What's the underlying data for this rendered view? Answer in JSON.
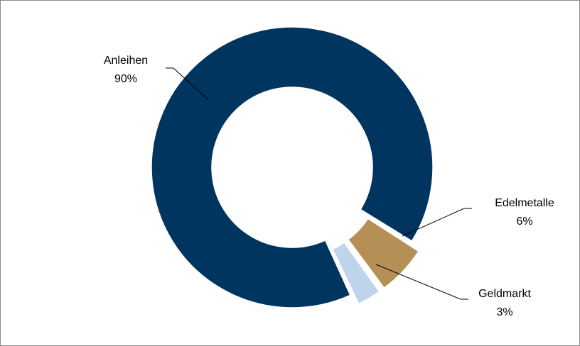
{
  "chart_data": {
    "type": "pie",
    "title": "",
    "slices": [
      {
        "label": "Anleihen",
        "value": 90,
        "display": "90%",
        "color": "#003560"
      },
      {
        "label": "Edelmetalle",
        "value": 6,
        "display": "6%",
        "color": "#b58f55"
      },
      {
        "label": "Geldmarkt",
        "value": 3,
        "display": "3%",
        "color": "#bdd4ec"
      }
    ],
    "unit": "%",
    "legend": "none",
    "style": "exploded donut"
  }
}
